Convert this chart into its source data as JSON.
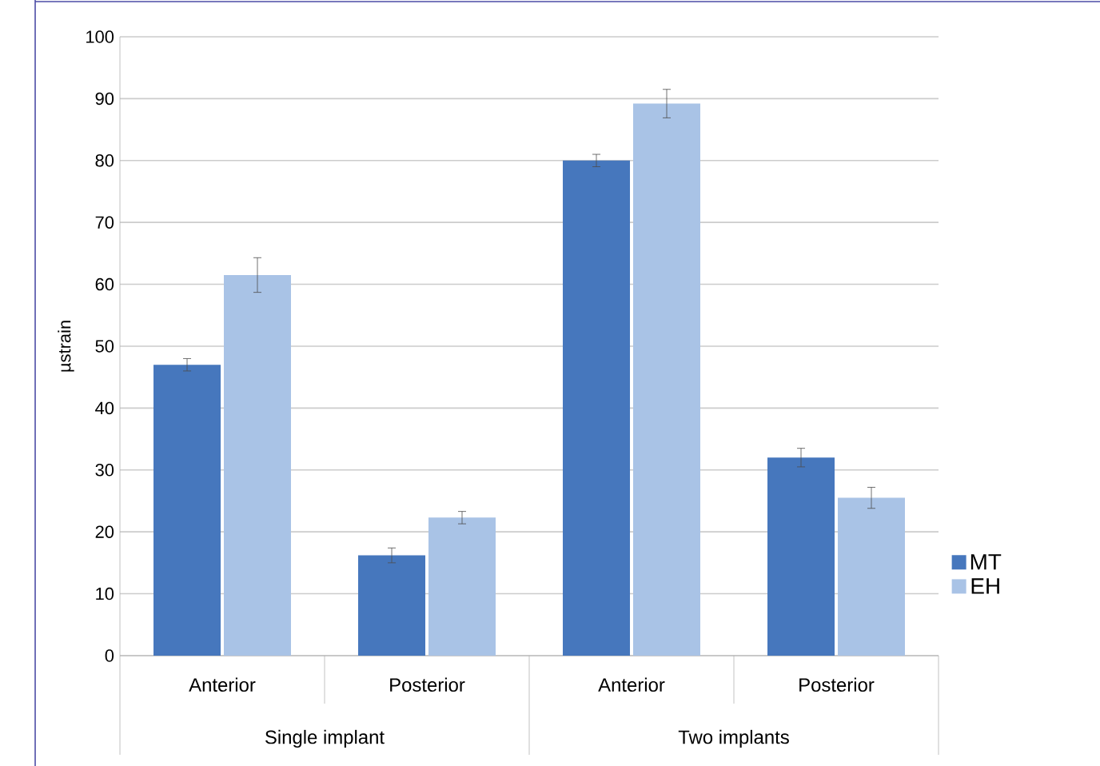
{
  "chart_data": {
    "type": "bar",
    "ylabel": "µstrain",
    "categories": [
      "Anterior",
      "Posterior",
      "Anterior",
      "Posterior"
    ],
    "annotations": [
      "Single implant",
      "Two implants"
    ],
    "series": [
      {
        "name": "MT",
        "color": "#4677bd",
        "values": [
          47,
          16.2,
          80,
          32
        ],
        "errors": [
          1,
          1.2,
          1,
          1.5
        ]
      },
      {
        "name": "EH",
        "color": "#a9c3e6",
        "values": [
          61.5,
          22.3,
          89.2,
          25.5
        ],
        "errors": [
          2.8,
          1,
          2.3,
          1.7
        ]
      }
    ],
    "ylim": [
      0,
      100
    ],
    "yticks": [
      0,
      10,
      20,
      30,
      40,
      50,
      60,
      70,
      80,
      90,
      100
    ],
    "grid": "y",
    "legend": "right"
  }
}
